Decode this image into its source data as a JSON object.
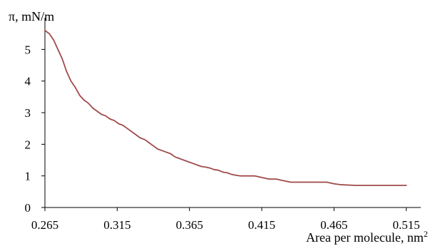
{
  "chart_data": {
    "type": "line",
    "ylabel": "π, mN/m",
    "xlabel": "Area per molecule, nm",
    "xlabel_superscript": "2",
    "xlim": [
      0.265,
      0.525
    ],
    "ylim": [
      0,
      6
    ],
    "xticks": [
      "0.265",
      "0.315",
      "0.365",
      "0.415",
      "0.465",
      "0.515"
    ],
    "xtick_values": [
      0.265,
      0.315,
      0.365,
      0.415,
      0.465,
      0.515
    ],
    "yticks": [
      "0",
      "1",
      "2",
      "3",
      "4",
      "5"
    ],
    "ytick_values": [
      0,
      1,
      2,
      3,
      4,
      5
    ],
    "grid": false,
    "series": [
      {
        "color": "#a04a4a",
        "x": [
          0.265,
          0.268,
          0.271,
          0.274,
          0.277,
          0.28,
          0.283,
          0.286,
          0.289,
          0.292,
          0.295,
          0.298,
          0.301,
          0.304,
          0.307,
          0.31,
          0.313,
          0.316,
          0.319,
          0.322,
          0.325,
          0.328,
          0.331,
          0.334,
          0.337,
          0.34,
          0.343,
          0.346,
          0.349,
          0.352,
          0.355,
          0.358,
          0.361,
          0.364,
          0.367,
          0.37,
          0.373,
          0.376,
          0.379,
          0.382,
          0.385,
          0.388,
          0.391,
          0.394,
          0.397,
          0.4,
          0.405,
          0.41,
          0.415,
          0.42,
          0.425,
          0.43,
          0.435,
          0.44,
          0.445,
          0.45,
          0.455,
          0.46,
          0.465,
          0.47,
          0.48,
          0.49,
          0.5,
          0.51,
          0.515
        ],
        "y": [
          5.6,
          5.5,
          5.3,
          5.0,
          4.7,
          4.3,
          4.0,
          3.8,
          3.55,
          3.4,
          3.3,
          3.15,
          3.05,
          2.95,
          2.9,
          2.8,
          2.75,
          2.65,
          2.6,
          2.5,
          2.4,
          2.3,
          2.2,
          2.15,
          2.05,
          1.95,
          1.85,
          1.8,
          1.75,
          1.7,
          1.6,
          1.55,
          1.5,
          1.45,
          1.4,
          1.35,
          1.3,
          1.28,
          1.25,
          1.2,
          1.18,
          1.12,
          1.1,
          1.05,
          1.02,
          1.0,
          1.0,
          1.0,
          0.95,
          0.9,
          0.9,
          0.85,
          0.8,
          0.8,
          0.8,
          0.8,
          0.8,
          0.8,
          0.75,
          0.72,
          0.7,
          0.7,
          0.7,
          0.7,
          0.7
        ]
      }
    ]
  }
}
